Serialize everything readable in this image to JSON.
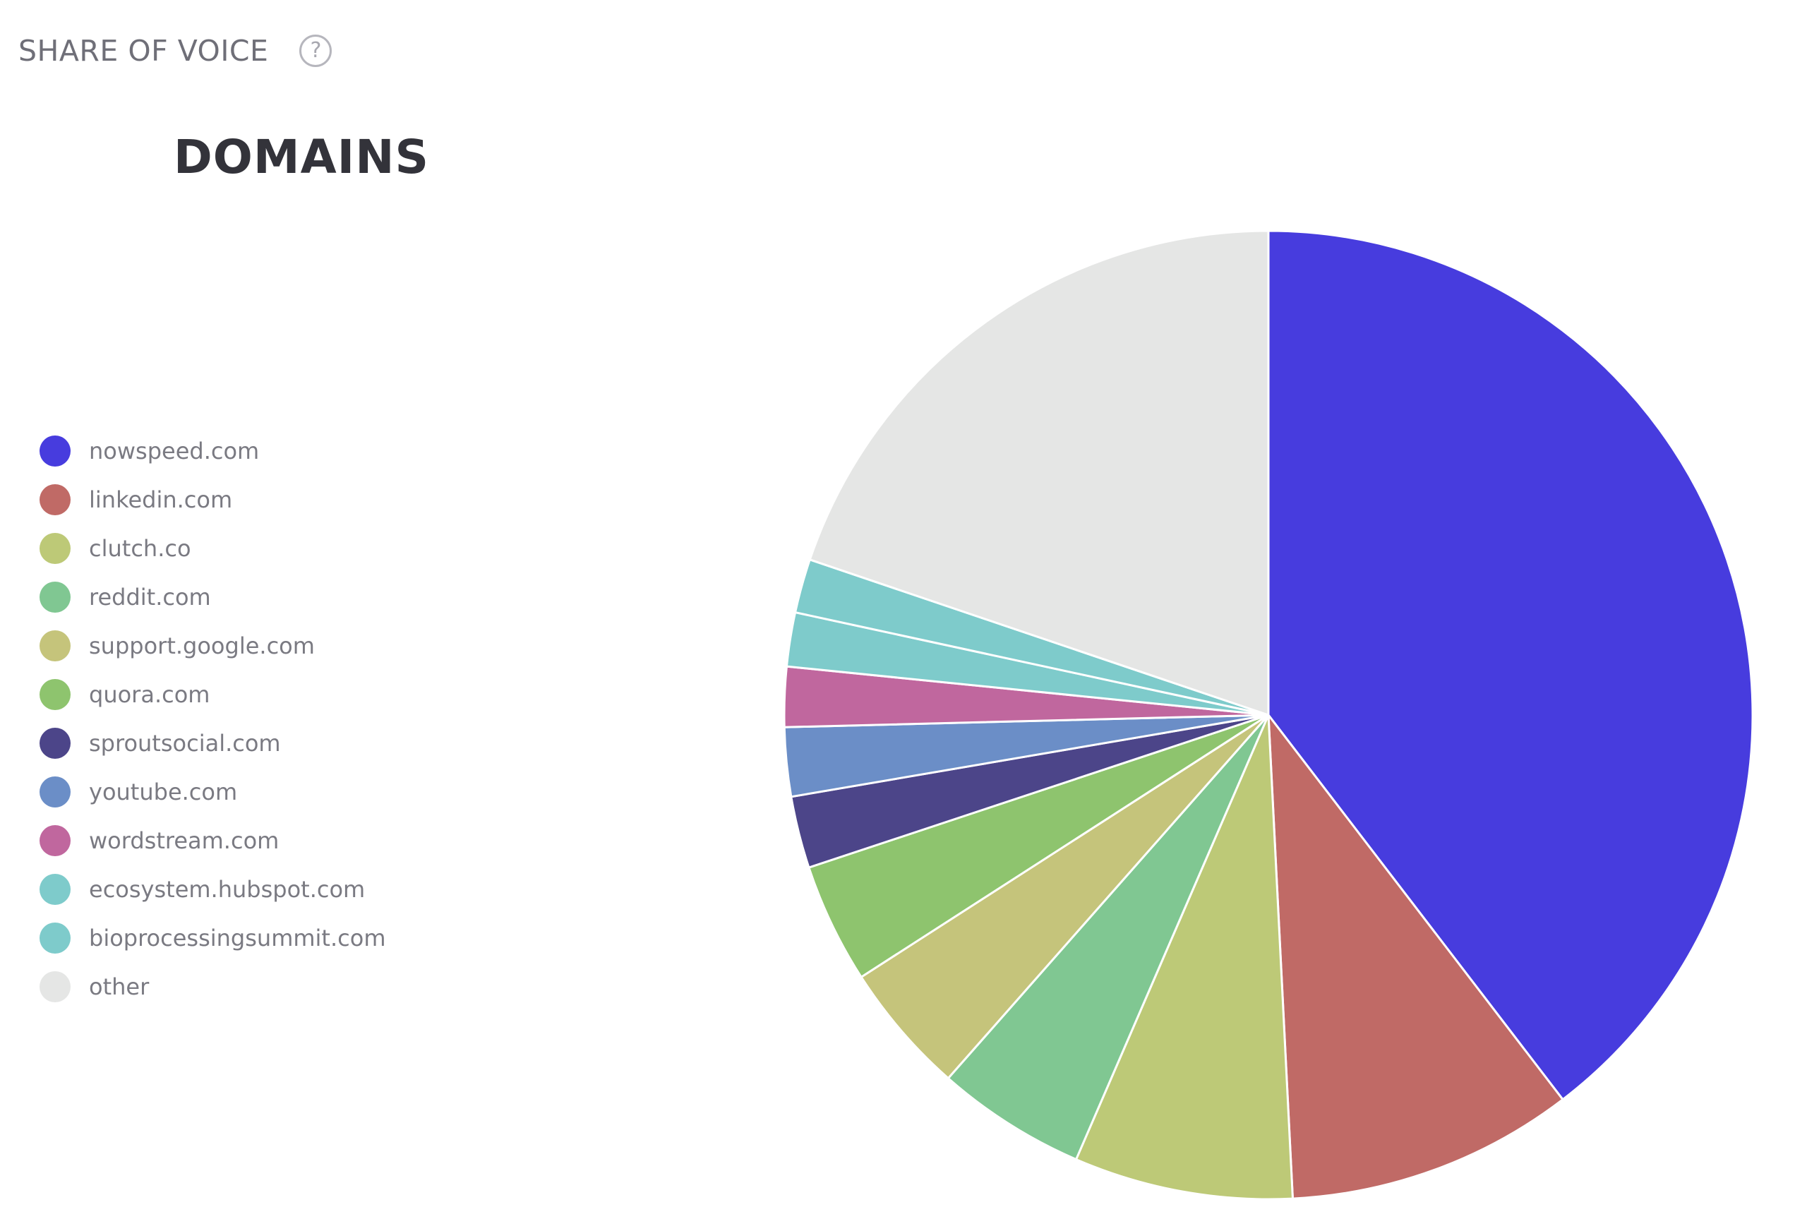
{
  "header": {
    "section_title": "SHARE OF VOICE",
    "help_icon": "question-circle-icon",
    "help_glyph": "?"
  },
  "chart_data": {
    "type": "pie",
    "title": "DOMAINS",
    "legend_position": "left",
    "start_angle": "12 o'clock, clockwise",
    "slices": [
      {
        "label": "nowspeed.com",
        "value": 39.6,
        "color": "#473cde"
      },
      {
        "label": "linkedin.com",
        "value": 9.6,
        "color": "#c06a66"
      },
      {
        "label": "clutch.co",
        "value": 7.3,
        "color": "#bdc977"
      },
      {
        "label": "reddit.com",
        "value": 5.0,
        "color": "#80c792"
      },
      {
        "label": "support.google.com",
        "value": 4.4,
        "color": "#c5c47b"
      },
      {
        "label": "quora.com",
        "value": 4.0,
        "color": "#8ec46e"
      },
      {
        "label": "sproutsocial.com",
        "value": 2.4,
        "color": "#4c4589"
      },
      {
        "label": "youtube.com",
        "value": 2.3,
        "color": "#6b8ec7"
      },
      {
        "label": "wordstream.com",
        "value": 2.0,
        "color": "#c0679e"
      },
      {
        "label": "ecosystem.hubspot.com",
        "value": 1.8,
        "color": "#7ecbcb"
      },
      {
        "label": "bioprocessingsummit.com",
        "value": 1.8,
        "color": "#7ecbcb"
      },
      {
        "label": "other",
        "value": 19.8,
        "color": "#e5e6e5"
      }
    ]
  }
}
